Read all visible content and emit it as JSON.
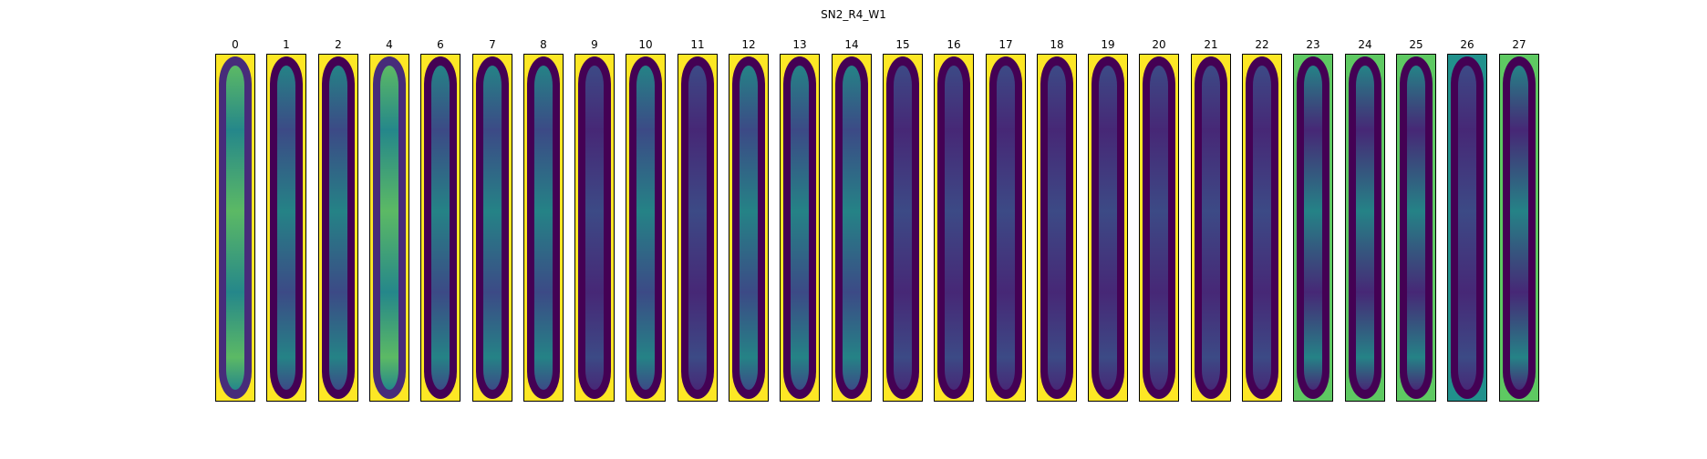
{
  "figure": {
    "title": "SN2_R4_W1"
  },
  "panels": [
    {
      "label": "0",
      "style": "bright"
    },
    {
      "label": "1",
      "style": "mid"
    },
    {
      "label": "2",
      "style": "mid"
    },
    {
      "label": "4",
      "style": "bright"
    },
    {
      "label": "6",
      "style": "mid"
    },
    {
      "label": "7",
      "style": "mid"
    },
    {
      "label": "8",
      "style": "mid"
    },
    {
      "label": "9",
      "style": "dark"
    },
    {
      "label": "10",
      "style": "mid"
    },
    {
      "label": "11",
      "style": "dark"
    },
    {
      "label": "12",
      "style": "mid"
    },
    {
      "label": "13",
      "style": "mid"
    },
    {
      "label": "14",
      "style": "mid"
    },
    {
      "label": "15",
      "style": "dark"
    },
    {
      "label": "16",
      "style": "dark"
    },
    {
      "label": "17",
      "style": "dark"
    },
    {
      "label": "18",
      "style": "dark"
    },
    {
      "label": "19",
      "style": "dark"
    },
    {
      "label": "20",
      "style": "dark"
    },
    {
      "label": "21",
      "style": "dark"
    },
    {
      "label": "22",
      "style": "dark"
    },
    {
      "label": "23",
      "style": "textured"
    },
    {
      "label": "24",
      "style": "textured"
    },
    {
      "label": "25",
      "style": "textured"
    },
    {
      "label": "26",
      "style": "faint"
    },
    {
      "label": "27",
      "style": "textured"
    }
  ],
  "colors": {
    "yellow": "#fde725",
    "green": "#5ec962",
    "teal": "#21918c",
    "blue": "#3b528b",
    "purple": "#472c7a",
    "dark": "#440154"
  }
}
